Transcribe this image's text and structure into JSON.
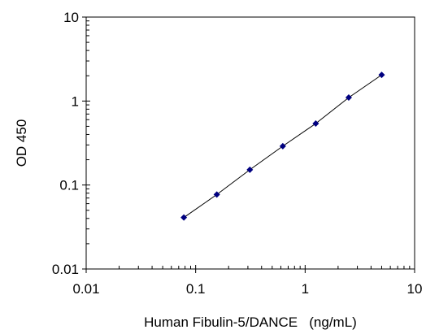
{
  "chart_data": {
    "type": "scatter",
    "title": "",
    "xlabel": "Human Fibulin-5/DANCE   (ng/mL)",
    "ylabel": "OD 450",
    "x_scale": "log",
    "y_scale": "log",
    "xlim": [
      0.01,
      10
    ],
    "ylim": [
      0.01,
      10
    ],
    "x_ticks": [
      "0.01",
      "0.1",
      "1",
      "10"
    ],
    "y_ticks": [
      "0.01",
      "0.1",
      "1",
      "10"
    ],
    "grid": false,
    "legend": "none",
    "marker_color": "#000080",
    "line_color": "#000000",
    "series": [
      {
        "x": [
          0.078,
          0.156,
          0.3125,
          0.625,
          1.25,
          2.5,
          5.0
        ],
        "y": [
          0.041,
          0.077,
          0.152,
          0.29,
          0.54,
          1.1,
          2.05
        ]
      }
    ]
  }
}
